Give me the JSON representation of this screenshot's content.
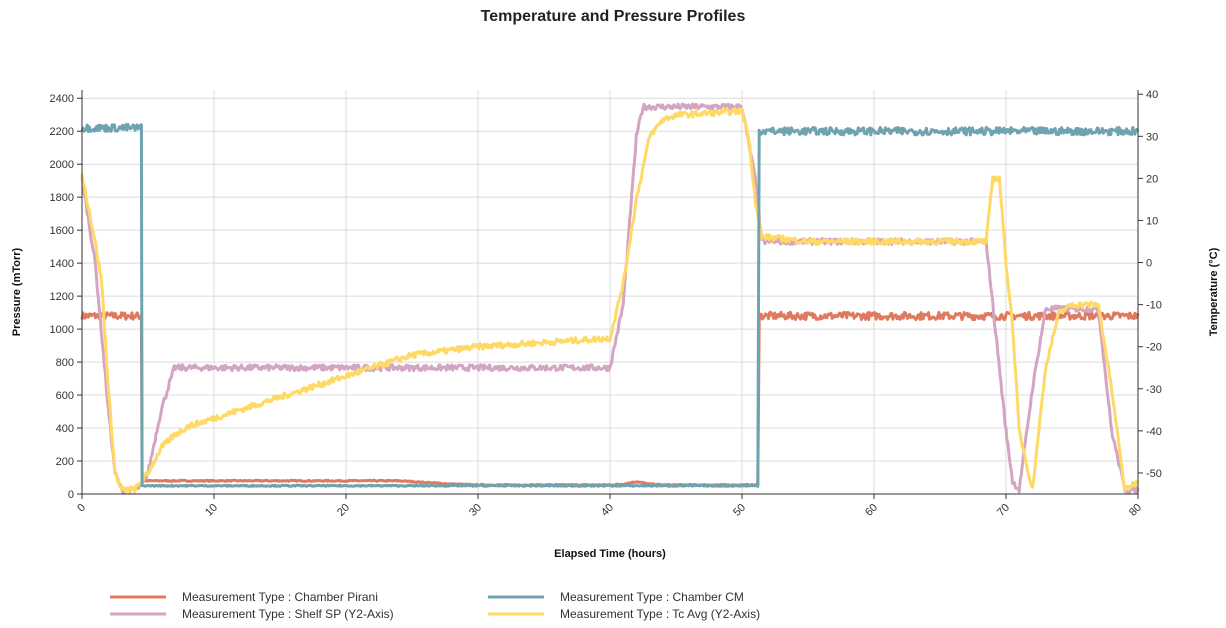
{
  "chart_data": {
    "type": "line",
    "title": "Temperature and Pressure Profiles",
    "xlabel": "Elapsed Time (hours)",
    "ylabel": "Pressure (mTorr)",
    "y2label": "Temperature (°C)",
    "xlim": [
      0,
      80
    ],
    "ylim": [
      0,
      2450
    ],
    "y2lim": [
      -55,
      41
    ],
    "x_ticks": [
      0,
      10,
      20,
      30,
      40,
      50,
      60,
      70,
      80
    ],
    "y_ticks": [
      0,
      200,
      400,
      600,
      800,
      1000,
      1200,
      1400,
      1600,
      1800,
      2000,
      2200,
      2400
    ],
    "y2_ticks": [
      -50,
      -40,
      -30,
      -20,
      -10,
      0,
      10,
      20,
      30,
      40
    ],
    "grid": true,
    "legend_position": "bottom-left",
    "series": [
      {
        "name": "Measurement Type : Chamber Pirani",
        "axis": "y",
        "color": "#e07a5f",
        "x": [
          0,
          4.5,
          4.55,
          5,
          10,
          20,
          24,
          26,
          28,
          30,
          35,
          40,
          41,
          42,
          43,
          44,
          50,
          51.2,
          51.3,
          55,
          60,
          65,
          70,
          75,
          80
        ],
        "y": [
          1080,
          1080,
          80,
          80,
          80,
          80,
          80,
          70,
          60,
          55,
          55,
          55,
          60,
          75,
          60,
          55,
          55,
          55,
          1080,
          1080,
          1080,
          1080,
          1080,
          1080,
          1080
        ]
      },
      {
        "name": "Measurement Type : Chamber CM",
        "axis": "y",
        "color": "#6fa3b0",
        "x": [
          0,
          4.5,
          4.55,
          5,
          10,
          20,
          30,
          40,
          50,
          51.2,
          51.3,
          55,
          60,
          65,
          70,
          75,
          80
        ],
        "y": [
          2220,
          2220,
          50,
          50,
          50,
          50,
          50,
          50,
          50,
          50,
          2200,
          2200,
          2200,
          2200,
          2200,
          2200,
          2200
        ]
      },
      {
        "name": "Measurement Type : Shelf SP (Y2-Axis)",
        "axis": "y2",
        "color": "#d4a5c2",
        "x": [
          0,
          1,
          2,
          2.5,
          3,
          4,
          4.5,
          5,
          6,
          7,
          10,
          20,
          30,
          40,
          41,
          41.5,
          42,
          42.5,
          45,
          50,
          51,
          51.5,
          55,
          60,
          65,
          68.5,
          69,
          70,
          70.5,
          71,
          72,
          73,
          75,
          76,
          77,
          78,
          79,
          80
        ],
        "y": [
          20,
          0,
          -35,
          -50,
          -54,
          -54,
          -53,
          -50,
          -35,
          -25,
          -25,
          -25,
          -25,
          -25,
          -10,
          10,
          30,
          37,
          37,
          37,
          20,
          5,
          5,
          5,
          5,
          5,
          -10,
          -40,
          -52,
          -54,
          -30,
          -11,
          -11,
          -11,
          -11,
          -40,
          -54,
          -54
        ]
      },
      {
        "name": "Measurement Type : Tc Avg (Y2-Axis)",
        "axis": "y2",
        "color": "#ffd966",
        "x": [
          0,
          1,
          1.5,
          2,
          2.5,
          3,
          4,
          5,
          6,
          7,
          8,
          10,
          15,
          20,
          25,
          30,
          35,
          40,
          41,
          42,
          43,
          44,
          45,
          50,
          50.5,
          51,
          51.5,
          52,
          55,
          60,
          65,
          68.5,
          69,
          69.5,
          70,
          70.5,
          71,
          72,
          73,
          74,
          75,
          76,
          77,
          78,
          79,
          80
        ],
        "y": [
          21,
          5,
          -5,
          -30,
          -50,
          -54,
          -54,
          -50,
          -44,
          -41,
          -39,
          -37,
          -32,
          -27,
          -22,
          -20,
          -19,
          -18,
          -5,
          15,
          30,
          34,
          35,
          36,
          30,
          15,
          6,
          6,
          5,
          5,
          5,
          5,
          20,
          20,
          0,
          -15,
          -40,
          -54,
          -25,
          -12,
          -10,
          -10,
          -10,
          -30,
          -54,
          -52
        ]
      }
    ]
  }
}
